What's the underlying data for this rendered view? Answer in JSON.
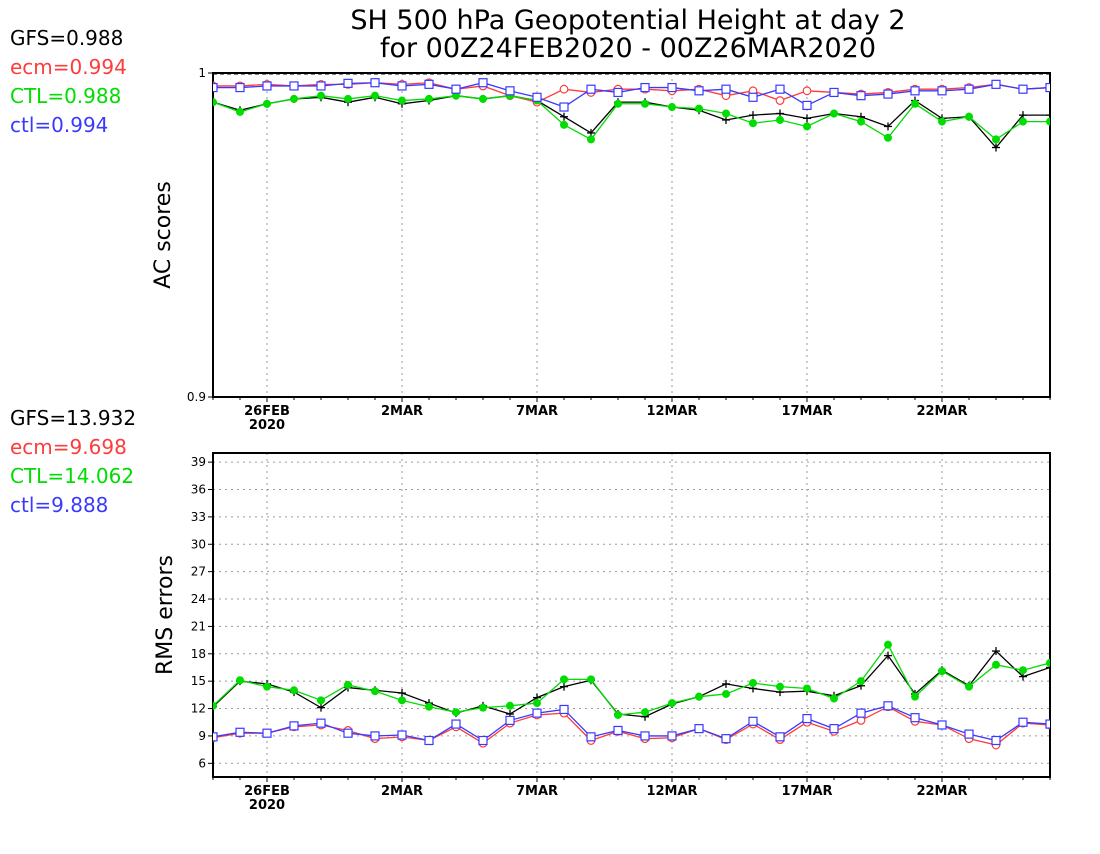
{
  "title_line1": "SH 500 hPa Geopotential Height at day 2",
  "title_line2": "for 00Z24FEB2020 - 00Z26MAR2020",
  "colors": {
    "GFS": "#000000",
    "ecm": "#ff3b3b",
    "CTL": "#00dd00",
    "ctl": "#3a3aff"
  },
  "chart_data": [
    {
      "type": "line",
      "ylabel": "AC scores",
      "ylim": [
        0.9,
        1.0
      ],
      "yticks": [
        "0.9",
        "1"
      ],
      "xlim": [
        0,
        31
      ],
      "x_ticks": [
        {
          "x": 2,
          "label": "26FEB",
          "sub": "2020"
        },
        {
          "x": 7,
          "label": "2MAR",
          "sub": ""
        },
        {
          "x": 12,
          "label": "7MAR",
          "sub": ""
        },
        {
          "x": 17,
          "label": "12MAR",
          "sub": ""
        },
        {
          "x": 22,
          "label": "17MAR",
          "sub": ""
        },
        {
          "x": 27,
          "label": "22MAR",
          "sub": ""
        }
      ],
      "grid": true,
      "legend": [
        {
          "text": "GFS=0.988",
          "color": "#000000"
        },
        {
          "text": "ecm=0.994",
          "color": "#ff3b3b"
        },
        {
          "text": "CTL=0.988",
          "color": "#00dd00"
        },
        {
          "text": "ctl=0.994",
          "color": "#3a3aff"
        }
      ],
      "series": [
        {
          "name": "GFS",
          "marker": "plus",
          "color": "#000000",
          "values": [
            0.991,
            0.9885,
            0.9905,
            0.992,
            0.9925,
            0.991,
            0.9925,
            0.9905,
            0.9915,
            0.993,
            0.992,
            0.993,
            0.9915,
            0.9865,
            0.9815,
            0.991,
            0.991,
            0.9895,
            0.9885,
            0.9855,
            0.987,
            0.9875,
            0.986,
            0.9875,
            0.9865,
            0.9835,
            0.9915,
            0.986,
            0.9865,
            0.977,
            0.987,
            0.987
          ]
        },
        {
          "name": "ecm",
          "marker": "circle",
          "color": "#ff3b3b",
          "values": [
            0.996,
            0.996,
            0.9965,
            0.996,
            0.9965,
            0.9965,
            0.997,
            0.9965,
            0.997,
            0.995,
            0.996,
            0.993,
            0.991,
            0.995,
            0.994,
            0.995,
            0.995,
            0.9945,
            0.995,
            0.993,
            0.9945,
            0.9915,
            0.9945,
            0.994,
            0.9935,
            0.994,
            0.995,
            0.995,
            0.9955,
            0.9965,
            0.995,
            0.9955
          ]
        },
        {
          "name": "CTL",
          "marker": "dot",
          "color": "#00dd00",
          "values": [
            0.991,
            0.988,
            0.9905,
            0.992,
            0.993,
            0.992,
            0.993,
            0.9915,
            0.992,
            0.993,
            0.992,
            0.993,
            0.9915,
            0.984,
            0.9795,
            0.9905,
            0.9905,
            0.9895,
            0.989,
            0.9875,
            0.9845,
            0.9855,
            0.9835,
            0.9875,
            0.985,
            0.98,
            0.9905,
            0.985,
            0.9865,
            0.9795,
            0.985,
            0.985
          ]
        },
        {
          "name": "ctl",
          "marker": "square",
          "color": "#3a3aff",
          "values": [
            0.9955,
            0.9955,
            0.996,
            0.996,
            0.996,
            0.9968,
            0.997,
            0.996,
            0.9965,
            0.995,
            0.997,
            0.9945,
            0.9925,
            0.9895,
            0.995,
            0.994,
            0.9955,
            0.9955,
            0.9945,
            0.995,
            0.9925,
            0.995,
            0.99,
            0.994,
            0.993,
            0.9935,
            0.9945,
            0.9945,
            0.995,
            0.9965,
            0.995,
            0.9955
          ]
        }
      ]
    },
    {
      "type": "line",
      "ylabel": "RMS errors",
      "ylim": [
        4.5,
        40
      ],
      "yticks": [
        "6",
        "9",
        "12",
        "15",
        "18",
        "21",
        "24",
        "27",
        "30",
        "33",
        "36",
        "39"
      ],
      "xlim": [
        0,
        31
      ],
      "x_ticks": [
        {
          "x": 2,
          "label": "26FEB",
          "sub": "2020"
        },
        {
          "x": 7,
          "label": "2MAR",
          "sub": ""
        },
        {
          "x": 12,
          "label": "7MAR",
          "sub": ""
        },
        {
          "x": 17,
          "label": "12MAR",
          "sub": ""
        },
        {
          "x": 22,
          "label": "17MAR",
          "sub": ""
        },
        {
          "x": 27,
          "label": "22MAR",
          "sub": ""
        }
      ],
      "grid": true,
      "legend": [
        {
          "text": "GFS=13.932",
          "color": "#000000"
        },
        {
          "text": "ecm=9.698",
          "color": "#ff3b3b"
        },
        {
          "text": "CTL=14.062",
          "color": "#00dd00"
        },
        {
          "text": "ctl=9.888",
          "color": "#3a3aff"
        }
      ],
      "series": [
        {
          "name": "GFS",
          "marker": "plus",
          "color": "#000000",
          "values": [
            12.2,
            15.0,
            14.7,
            13.8,
            12.1,
            14.3,
            14.0,
            13.7,
            12.6,
            11.5,
            12.3,
            11.4,
            13.2,
            14.4,
            15.1,
            11.4,
            11.1,
            12.5,
            13.3,
            14.7,
            14.2,
            13.8,
            13.9,
            13.4,
            14.5,
            17.8,
            13.6,
            16.2,
            14.5,
            18.3,
            15.5,
            16.5
          ]
        },
        {
          "name": "ecm",
          "marker": "circle",
          "color": "#ff3b3b",
          "values": [
            8.8,
            9.3,
            9.3,
            10.0,
            10.2,
            9.6,
            8.7,
            8.9,
            8.5,
            10.0,
            8.2,
            10.4,
            11.3,
            11.5,
            8.5,
            9.5,
            8.7,
            8.8,
            9.8,
            8.6,
            10.3,
            8.6,
            10.5,
            9.5,
            10.7,
            12.2,
            10.6,
            10.2,
            8.7,
            8.0,
            10.4,
            10.2
          ]
        },
        {
          "name": "CTL",
          "marker": "dot",
          "color": "#00dd00",
          "values": [
            12.3,
            15.1,
            14.4,
            14.0,
            12.9,
            14.6,
            13.9,
            12.9,
            12.2,
            11.6,
            12.1,
            12.3,
            12.6,
            15.2,
            15.2,
            11.3,
            11.6,
            12.6,
            13.3,
            13.6,
            14.8,
            14.4,
            14.2,
            13.1,
            15.0,
            19.0,
            13.3,
            16.1,
            14.4,
            16.8,
            16.2,
            17.0
          ]
        },
        {
          "name": "ctl",
          "marker": "square",
          "color": "#3a3aff",
          "values": [
            8.9,
            9.4,
            9.3,
            10.1,
            10.4,
            9.3,
            9.0,
            9.1,
            8.5,
            10.3,
            8.5,
            10.7,
            11.5,
            11.9,
            8.9,
            9.6,
            9.0,
            9.0,
            9.8,
            8.7,
            10.6,
            8.9,
            10.9,
            9.8,
            11.5,
            12.3,
            11.0,
            10.2,
            9.2,
            8.5,
            10.5,
            10.3
          ]
        }
      ]
    }
  ]
}
